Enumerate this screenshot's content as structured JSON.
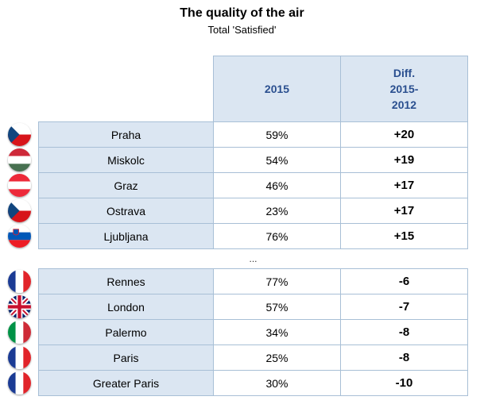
{
  "header": {
    "title": "The quality of the air",
    "subtitle": "Total 'Satisfied'"
  },
  "table_header": {
    "col_year": "2015",
    "col_diff_line1": "Diff.",
    "col_diff_line2": "2015-",
    "col_diff_line3": "2012"
  },
  "separator_text": "...",
  "colors": {
    "header_bg": "#dbe6f2",
    "header_text": "#2a4f8f",
    "border": "#a8bfd6"
  },
  "chart_data": {
    "type": "table",
    "title": "The quality of the air",
    "subtitle": "Total 'Satisfied'",
    "columns": [
      "",
      "2015",
      "Diff. 2015-2012"
    ],
    "rows": [
      {
        "city": "Praha",
        "flag": "czech-flag-icon",
        "value": "59%",
        "diff": "+20"
      },
      {
        "city": "Miskolc",
        "flag": "hungary-flag-icon",
        "value": "54%",
        "diff": "+19"
      },
      {
        "city": "Graz",
        "flag": "austria-flag-icon",
        "value": "46%",
        "diff": "+17"
      },
      {
        "city": "Ostrava",
        "flag": "czech-flag-icon",
        "value": "23%",
        "diff": "+17"
      },
      {
        "city": "Ljubljana",
        "flag": "slovenia-flag-icon",
        "value": "76%",
        "diff": "+15"
      },
      {
        "city": "Rennes",
        "flag": "france-flag-icon",
        "value": "77%",
        "diff": "-6"
      },
      {
        "city": "London",
        "flag": "uk-flag-icon",
        "value": "57%",
        "diff": "-7"
      },
      {
        "city": "Palermo",
        "flag": "italy-flag-icon",
        "value": "34%",
        "diff": "-8"
      },
      {
        "city": "Paris",
        "flag": "france-flag-icon",
        "value": "25%",
        "diff": "-8"
      },
      {
        "city": "Greater Paris",
        "flag": "france-flag-icon",
        "value": "30%",
        "diff": "-10"
      }
    ]
  }
}
